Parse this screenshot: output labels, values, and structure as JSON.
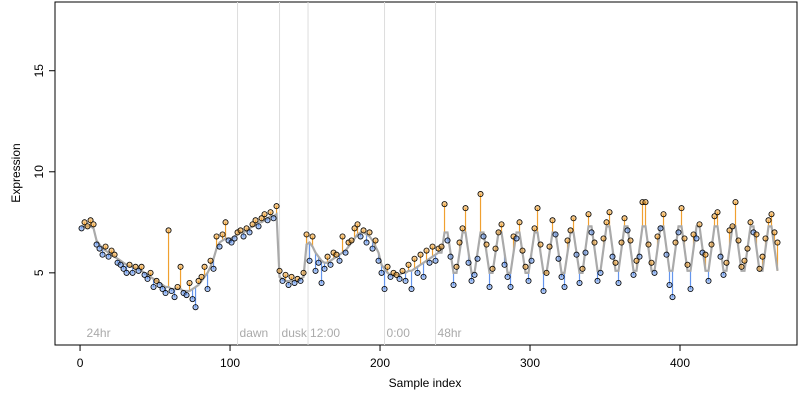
{
  "chart_data": {
    "type": "scatter",
    "xlabel": "Sample index",
    "ylabel": "Expression",
    "xlim": [
      -16.7,
      478
    ],
    "ylim": [
      1.43,
      18.4
    ],
    "xticks": [
      0,
      100,
      200,
      300,
      400
    ],
    "yticks": [
      5,
      10,
      15
    ],
    "annotations": [
      {
        "x": 3,
        "label": "24hr",
        "line": false
      },
      {
        "x": 105,
        "label": "dawn",
        "line": true
      },
      {
        "x": 133,
        "label": "dusk",
        "line": true
      },
      {
        "x": 152,
        "label": "12:00",
        "line": true
      },
      {
        "x": 203,
        "label": "0:00",
        "line": true
      },
      {
        "x": 237,
        "label": "48hr",
        "line": true
      }
    ],
    "above_color": "#f0a030",
    "below_color": "#6495ed",
    "point_stroke": "#000000",
    "annotation_line_color": "#dddddd",
    "x": [
      1,
      3,
      5,
      7,
      9,
      11,
      13,
      15,
      17,
      19,
      21,
      23,
      25,
      27,
      29,
      31,
      33,
      35,
      37,
      39,
      41,
      43,
      45,
      47,
      49,
      51,
      53,
      55,
      57,
      59,
      61,
      63,
      65,
      67,
      69,
      71,
      73,
      75,
      77,
      79,
      81,
      83,
      85,
      87,
      89,
      91,
      93,
      95,
      97,
      99,
      101,
      103,
      105,
      107,
      109,
      111,
      113,
      115,
      117,
      119,
      121,
      123,
      125,
      127,
      129,
      131,
      133,
      135,
      137,
      139,
      141,
      143,
      145,
      147,
      149,
      151,
      153,
      155,
      157,
      159,
      161,
      163,
      165,
      167,
      169,
      171,
      173,
      175,
      177,
      179,
      181,
      183,
      185,
      187,
      189,
      191,
      193,
      195,
      197,
      199,
      201,
      203,
      205,
      207,
      209,
      211,
      213,
      215,
      217,
      219,
      221,
      223,
      225,
      227,
      229,
      231,
      233,
      235,
      237,
      239,
      241,
      243,
      245,
      247,
      249,
      251,
      253,
      255,
      257,
      259,
      261,
      263,
      265,
      267,
      269,
      271,
      273,
      275,
      277,
      279,
      281,
      283,
      285,
      287,
      289,
      291,
      293,
      295,
      297,
      299,
      301,
      303,
      305,
      307,
      309,
      311,
      313,
      315,
      317,
      319,
      321,
      323,
      325,
      327,
      329,
      331,
      333,
      335,
      337,
      339,
      341,
      343,
      345,
      347,
      349,
      351,
      353,
      355,
      357,
      359,
      361,
      363,
      365,
      367,
      369,
      371,
      373,
      375,
      377,
      379,
      381,
      383,
      385,
      387,
      389,
      391,
      393,
      395,
      397,
      399,
      401,
      403,
      405,
      407,
      409,
      411,
      413,
      415,
      417,
      419,
      421,
      423,
      425,
      427,
      429,
      431,
      433,
      435,
      437,
      439,
      441,
      443,
      445,
      447,
      449,
      451,
      453,
      455,
      457,
      459,
      461,
      463,
      465
    ],
    "values": [
      7.2,
      7.5,
      7.3,
      7.6,
      7.4,
      6.4,
      6.2,
      5.9,
      6.3,
      5.8,
      6.1,
      5.9,
      5.5,
      5.4,
      5.2,
      5.0,
      5.4,
      5.0,
      5.3,
      5.1,
      5.3,
      4.9,
      4.7,
      5.0,
      4.3,
      4.6,
      4.4,
      4.2,
      4.0,
      7.1,
      4.1,
      3.8,
      4.3,
      5.3,
      4.0,
      3.9,
      4.5,
      3.7,
      3.3,
      4.6,
      4.8,
      5.3,
      4.2,
      5.6,
      5.2,
      6.8,
      6.3,
      6.9,
      7.5,
      6.6,
      6.5,
      6.7,
      7.0,
      7.1,
      6.8,
      7.2,
      7.0,
      7.4,
      7.6,
      7.3,
      7.7,
      7.9,
      7.6,
      8.0,
      7.7,
      8.3,
      5.1,
      4.6,
      4.9,
      4.4,
      4.8,
      4.5,
      4.7,
      4.6,
      5.0,
      6.9,
      5.6,
      6.8,
      5.1,
      5.5,
      4.5,
      5.2,
      5.8,
      5.4,
      6.0,
      5.9,
      5.6,
      6.8,
      6.0,
      6.5,
      6.6,
      7.2,
      7.4,
      6.8,
      7.1,
      6.5,
      7.0,
      6.2,
      6.6,
      5.6,
      5.0,
      4.2,
      5.3,
      4.8,
      5.0,
      4.9,
      4.7,
      5.1,
      4.6,
      5.4,
      4.2,
      5.7,
      5.0,
      5.9,
      4.8,
      6.1,
      5.5,
      6.3,
      5.6,
      6.2,
      6.3,
      8.4,
      6.6,
      5.8,
      4.4,
      5.3,
      6.5,
      7.2,
      8.2,
      5.5,
      4.6,
      4.9,
      5.7,
      8.9,
      6.8,
      6.4,
      4.3,
      5.2,
      6.2,
      7.0,
      7.4,
      5.4,
      4.8,
      4.3,
      6.8,
      6.7,
      7.5,
      6.1,
      5.3,
      4.6,
      5.6,
      7.2,
      8.2,
      6.4,
      4.1,
      5.0,
      6.3,
      7.6,
      6.9,
      5.7,
      4.8,
      4.3,
      6.6,
      7.1,
      7.7,
      5.9,
      4.5,
      5.2,
      6.0,
      7.9,
      7.0,
      6.5,
      4.6,
      5.0,
      6.7,
      7.5,
      8.0,
      5.8,
      5.5,
      4.5,
      6.5,
      7.7,
      7.1,
      6.6,
      4.9,
      5.6,
      5.8,
      8.5,
      8.5,
      6.4,
      5.5,
      5.0,
      6.8,
      7.2,
      7.9,
      5.9,
      4.4,
      3.8,
      6.5,
      7.0,
      8.2,
      6.7,
      5.4,
      4.2,
      6.9,
      6.7,
      7.4,
      6.0,
      5.9,
      4.6,
      6.4,
      7.8,
      8.0,
      5.8,
      4.9,
      5.5,
      7.1,
      7.3,
      8.5,
      6.6,
      5.3,
      5.6,
      6.2,
      7.5,
      7.0,
      6.9,
      5.2,
      5.8,
      6.7,
      7.6,
      7.9,
      7.0,
      6.5
    ],
    "fit": {
      "color": "#aaaaaa",
      "values": [
        7.3,
        7.3,
        7.3,
        7.3,
        7.2,
        6.6,
        6.4,
        6.2,
        6.1,
        6.0,
        5.9,
        5.8,
        5.7,
        5.6,
        5.5,
        5.4,
        5.3,
        5.3,
        5.2,
        5.2,
        5.1,
        5.0,
        4.9,
        4.8,
        4.7,
        4.6,
        4.5,
        4.4,
        4.3,
        4.3,
        4.2,
        4.2,
        4.2,
        4.2,
        4.1,
        4.1,
        4.1,
        4.2,
        4.3,
        4.4,
        4.6,
        4.8,
        5.0,
        5.3,
        5.7,
        6.2,
        6.5,
        6.6,
        6.7,
        6.7,
        6.7,
        6.8,
        6.9,
        7.0,
        7.0,
        7.1,
        7.2,
        7.3,
        7.4,
        7.5,
        7.5,
        7.6,
        7.7,
        7.8,
        7.8,
        7.9,
        4.8,
        4.7,
        4.6,
        4.6,
        4.6,
        4.6,
        4.6,
        4.7,
        4.8,
        6.4,
        6.5,
        6.3,
        6.0,
        5.8,
        5.6,
        5.5,
        5.5,
        5.6,
        5.7,
        5.8,
        5.9,
        6.0,
        6.1,
        6.3,
        6.5,
        6.7,
        6.9,
        7.0,
        7.0,
        6.9,
        6.8,
        6.6,
        6.3,
        6.0,
        5.4,
        5.2,
        5.0,
        4.9,
        4.9,
        4.9,
        4.9,
        5.0,
        5.0,
        5.1,
        5.1,
        5.2,
        5.3,
        5.4,
        5.5,
        5.6,
        5.7,
        5.8,
        5.9,
        6.0,
        6.0,
        7.0,
        7.0,
        6.0,
        5.0,
        5.0,
        6.0,
        7.0,
        7.0,
        6.0,
        5.0,
        5.0,
        6.0,
        7.0,
        7.0,
        6.0,
        5.0,
        5.0,
        6.0,
        7.0,
        7.0,
        6.0,
        5.0,
        5.0,
        6.0,
        7.0,
        7.0,
        6.0,
        5.0,
        5.0,
        6.0,
        7.0,
        7.0,
        6.0,
        5.0,
        5.0,
        6.0,
        7.0,
        7.0,
        6.0,
        5.0,
        5.0,
        6.0,
        7.0,
        7.0,
        6.0,
        5.0,
        5.0,
        6.2,
        7.3,
        7.3,
        6.2,
        5.1,
        5.1,
        6.2,
        7.3,
        7.3,
        6.2,
        5.1,
        5.1,
        6.2,
        7.3,
        7.3,
        6.2,
        5.1,
        5.1,
        6.2,
        7.3,
        7.3,
        6.2,
        5.1,
        5.1,
        6.2,
        7.3,
        7.3,
        6.2,
        5.1,
        5.1,
        6.2,
        7.3,
        7.3,
        6.2,
        5.1,
        5.1,
        6.2,
        7.3,
        7.3,
        6.2,
        5.1,
        5.1,
        6.2,
        7.3,
        7.3,
        6.2,
        5.1,
        5.1,
        6.2,
        7.3,
        7.3,
        6.2,
        5.1,
        5.1,
        6.2,
        7.3,
        7.3,
        6.2,
        5.1,
        5.1,
        6.2,
        7.3,
        7.3,
        6.2,
        5.1
      ]
    }
  }
}
